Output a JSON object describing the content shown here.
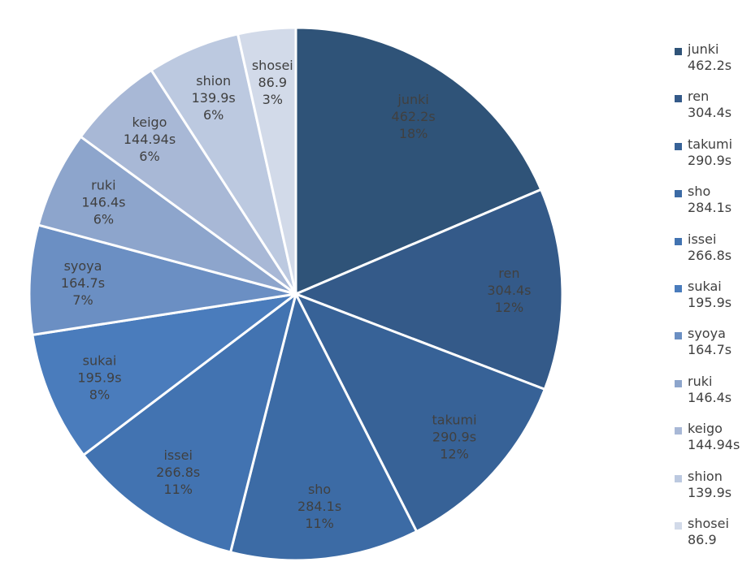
{
  "chart_data": {
    "type": "pie",
    "title": "",
    "legend_position": "right",
    "slices": [
      {
        "name": "junki",
        "value_label": "462.2s",
        "value": 462.2,
        "percent": "18%",
        "color": "#2f5378"
      },
      {
        "name": "ren",
        "value_label": "304.4s",
        "value": 304.4,
        "percent": "12%",
        "color": "#345a89"
      },
      {
        "name": "takumi",
        "value_label": "290.9s",
        "value": 290.9,
        "percent": "12%",
        "color": "#376297"
      },
      {
        "name": "sho",
        "value_label": "284.1s",
        "value": 284.1,
        "percent": "11%",
        "color": "#3c6ba5"
      },
      {
        "name": "issei",
        "value_label": "266.8s",
        "value": 266.8,
        "percent": "11%",
        "color": "#4273b1"
      },
      {
        "name": "sukai",
        "value_label": "195.9s",
        "value": 195.9,
        "percent": "8%",
        "color": "#4a7cbc"
      },
      {
        "name": "syoya",
        "value_label": "164.7s",
        "value": 164.7,
        "percent": "7%",
        "color": "#6b8fc3"
      },
      {
        "name": "ruki",
        "value_label": "146.4s",
        "value": 146.4,
        "percent": "6%",
        "color": "#8da5cc"
      },
      {
        "name": "keigo",
        "value_label": "144.94s",
        "value": 144.94,
        "percent": "6%",
        "color": "#a8b8d6"
      },
      {
        "name": "shion",
        "value_label": "139.9s",
        "value": 139.9,
        "percent": "6%",
        "color": "#bcc9e0"
      },
      {
        "name": "shosei",
        "value_label": "86.9",
        "value": 86.9,
        "percent": "3%",
        "color": "#d2dae9"
      }
    ]
  }
}
